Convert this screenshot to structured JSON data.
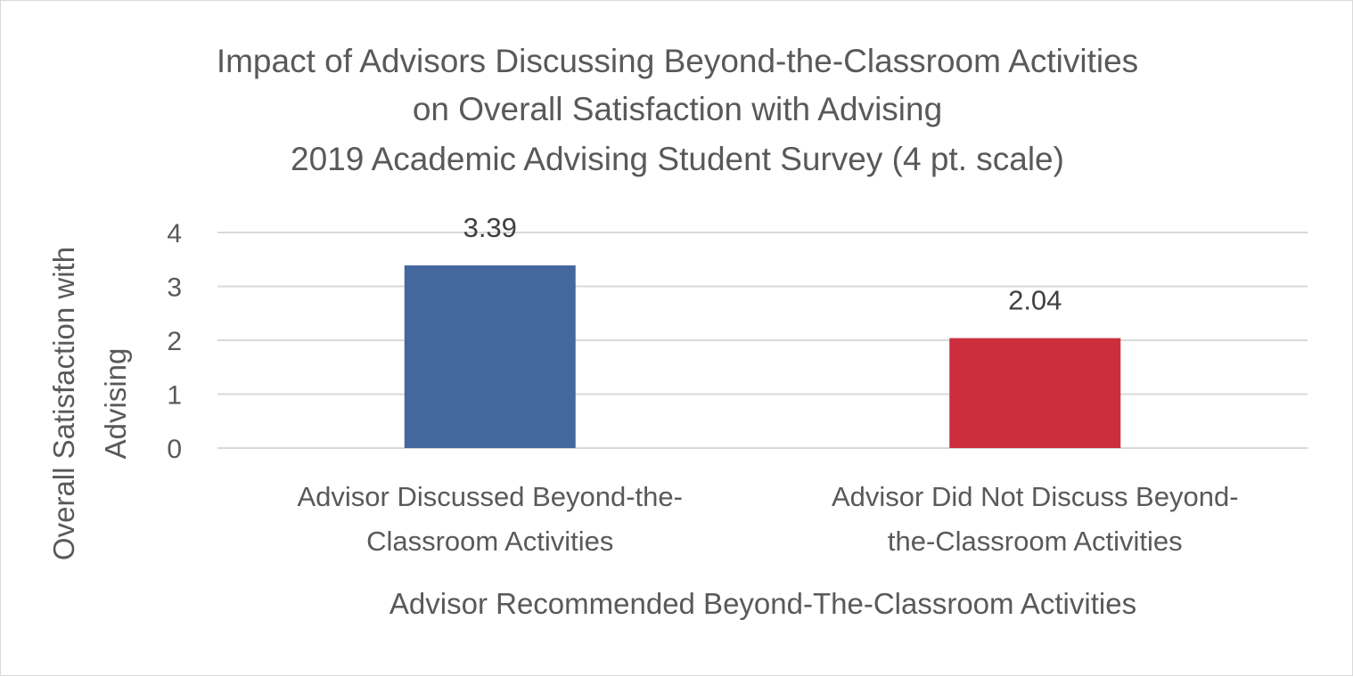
{
  "chart_data": {
    "type": "bar",
    "title_lines": [
      "Impact of Advisors Discussing Beyond-the-Classroom Activities",
      "on Overall Satisfaction with Advising",
      "2019 Academic Advising Student Survey (4 pt. scale)"
    ],
    "categories": [
      [
        "Advisor Discussed Beyond-the-",
        "Classroom Activities"
      ],
      [
        "Advisor Did Not Discuss Beyond-",
        "the-Classroom Activities"
      ]
    ],
    "values": [
      3.39,
      2.04
    ],
    "value_labels": [
      "3.39",
      "2.04"
    ],
    "bar_colors": [
      "#44679e",
      "#cc2e3e"
    ],
    "xlabel": "Advisor Recommended Beyond-The-Classroom Activities",
    "ylabel_lines": [
      "Overall Satisfaction with",
      "Advising"
    ],
    "yticks": [
      0,
      1,
      2,
      3,
      4
    ],
    "ylim": [
      0,
      4
    ],
    "grid": true,
    "legend": "none"
  }
}
